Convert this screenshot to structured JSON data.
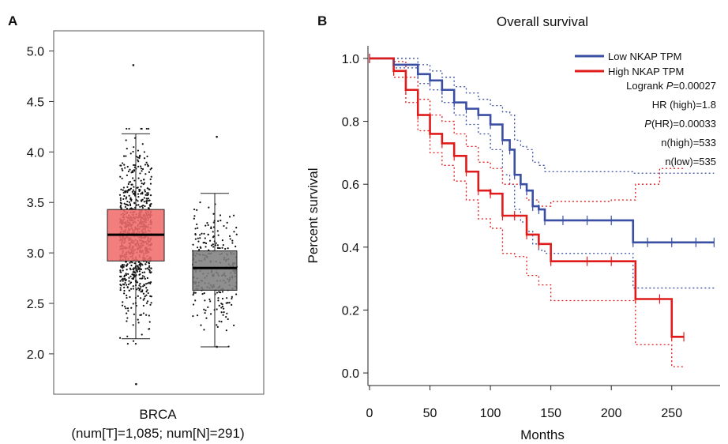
{
  "panels": {
    "a_label": "A",
    "b_label": "B"
  },
  "chart_data": [
    {
      "type": "box",
      "panel": "A",
      "xlabel_line1": "BRCA",
      "xlabel_line2": "(num[T]=1,085; num[N]=291)",
      "ylim": [
        1.6,
        5.2
      ],
      "yticks": [
        "2.0",
        "2.5",
        "3.0",
        "3.5",
        "4.0",
        "4.5",
        "5.0"
      ],
      "ytick_values": [
        2.0,
        2.5,
        3.0,
        3.5,
        4.0,
        4.5,
        5.0
      ],
      "boxes": [
        {
          "group": "T",
          "n": 1085,
          "q1": 2.92,
          "median": 3.18,
          "q3": 3.43,
          "whisker_low": 2.15,
          "whisker_high": 4.18,
          "min": 1.7,
          "max": 4.86,
          "color": "#f06c6c"
        },
        {
          "group": "N",
          "n": 291,
          "q1": 2.63,
          "median": 2.85,
          "q3": 3.02,
          "whisker_low": 2.07,
          "whisker_high": 3.59,
          "min": 2.07,
          "max": 4.15,
          "color": "#808080"
        }
      ]
    },
    {
      "type": "line",
      "subtype": "kaplan-meier",
      "panel": "B",
      "title": "Overall survival",
      "xlabel": "Months",
      "ylabel": "Percent survival",
      "xlim": [
        0,
        290
      ],
      "ylim": [
        -0.04,
        1.04
      ],
      "xticks": [
        "0",
        "50",
        "100",
        "150",
        "200",
        "250"
      ],
      "xtick_values": [
        0,
        50,
        100,
        150,
        200,
        250
      ],
      "yticks": [
        "0.0",
        "0.2",
        "0.4",
        "0.6",
        "0.8",
        "1.0"
      ],
      "ytick_values": [
        0.0,
        0.2,
        0.4,
        0.6,
        0.8,
        1.0
      ],
      "legend_position": "top-right",
      "stats": {
        "logrank_prefix": "Logrank ",
        "logrank_p_label": "P",
        "logrank_value": "=0.00027",
        "hr": "HR (high)=1.8",
        "phr_label": "P",
        "phr_value": "(HR)=0.00033",
        "n_high": "n(high)=533",
        "n_low": "n(low)=535"
      },
      "series": [
        {
          "name": "Low NKAP TPM",
          "color": "#3a4fa3",
          "x": [
            0,
            20,
            40,
            50,
            60,
            70,
            80,
            90,
            100,
            110,
            116,
            120,
            125,
            130,
            135,
            140,
            145,
            160,
            180,
            200,
            218,
            230,
            250,
            270,
            285
          ],
          "y": [
            1.0,
            0.98,
            0.95,
            0.93,
            0.9,
            0.86,
            0.84,
            0.82,
            0.79,
            0.74,
            0.71,
            0.63,
            0.6,
            0.58,
            0.53,
            0.52,
            0.485,
            0.485,
            0.485,
            0.485,
            0.415,
            0.415,
            0.415,
            0.415,
            0.415
          ],
          "lower": [
            1.0,
            0.97,
            0.92,
            0.9,
            0.86,
            0.82,
            0.79,
            0.76,
            0.71,
            0.63,
            0.6,
            0.52,
            0.48,
            0.45,
            0.41,
            0.39,
            0.38,
            0.38,
            0.38,
            0.38,
            0.27,
            0.27,
            0.27,
            0.27,
            0.27
          ],
          "upper": [
            1.0,
            1.0,
            0.98,
            0.96,
            0.94,
            0.91,
            0.89,
            0.87,
            0.85,
            0.83,
            0.82,
            0.74,
            0.72,
            0.71,
            0.67,
            0.66,
            0.64,
            0.64,
            0.64,
            0.64,
            0.635,
            0.635,
            0.635,
            0.635,
            0.635
          ]
        },
        {
          "name": "High NKAP TPM",
          "color": "#e01b1b",
          "x": [
            0,
            20,
            30,
            40,
            50,
            60,
            70,
            80,
            90,
            100,
            110,
            120,
            130,
            140,
            150,
            180,
            200,
            220,
            240,
            250,
            260
          ],
          "y": [
            1.0,
            0.96,
            0.9,
            0.82,
            0.76,
            0.73,
            0.69,
            0.64,
            0.58,
            0.57,
            0.5,
            0.5,
            0.44,
            0.41,
            0.355,
            0.355,
            0.355,
            0.235,
            0.235,
            0.115,
            0.115
          ],
          "lower": [
            1.0,
            0.94,
            0.86,
            0.77,
            0.7,
            0.66,
            0.61,
            0.55,
            0.49,
            0.46,
            0.38,
            0.37,
            0.31,
            0.28,
            0.23,
            0.23,
            0.23,
            0.09,
            0.09,
            0.02,
            0.02
          ],
          "upper": [
            1.0,
            0.99,
            0.94,
            0.87,
            0.82,
            0.8,
            0.76,
            0.72,
            0.67,
            0.65,
            0.6,
            0.6,
            0.55,
            0.53,
            0.545,
            0.545,
            0.55,
            0.6,
            0.65,
            0.65,
            0.65
          ]
        }
      ]
    }
  ]
}
